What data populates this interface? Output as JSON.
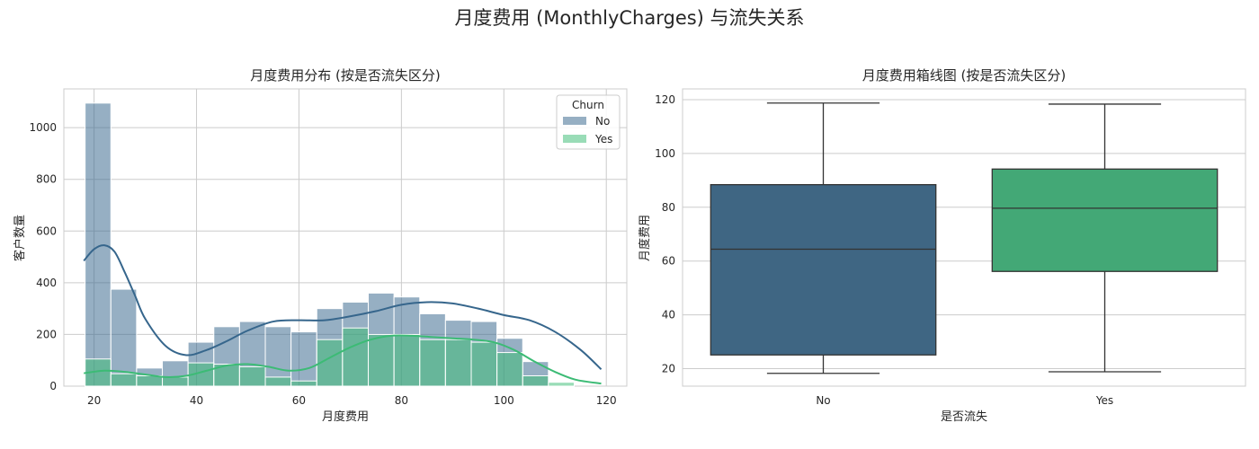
{
  "figure": {
    "title": "月度费用 (MonthlyCharges) 与流失关系"
  },
  "chart_data": [
    {
      "type": "histogram",
      "title": "月度费用分布 (按是否流失区分)",
      "xlabel": "月度费用",
      "ylabel": "客户数量",
      "xlim": [
        14.1,
        124
      ],
      "ylim": [
        0,
        1150
      ],
      "xticks": [
        20,
        40,
        60,
        80,
        100,
        120
      ],
      "yticks": [
        0,
        200,
        400,
        600,
        800,
        1000
      ],
      "grid": true,
      "legend": {
        "title": "Churn",
        "placement": "top-right"
      },
      "bin_edges": [
        18.25,
        23.28,
        28.3,
        33.33,
        38.35,
        43.38,
        48.4,
        53.43,
        58.45,
        63.48,
        68.5,
        73.53,
        78.55,
        83.58,
        88.6,
        93.63,
        98.65,
        103.68,
        108.7,
        113.73,
        118.75
      ],
      "series": [
        {
          "name": "No",
          "color": "#36668c",
          "counts": [
            1095,
            375,
            70,
            98,
            170,
            230,
            250,
            230,
            210,
            300,
            325,
            360,
            345,
            280,
            255,
            250,
            185,
            95,
            0,
            0
          ],
          "kde_x": [
            18,
            20,
            22,
            24,
            26,
            28,
            30,
            34,
            38,
            42,
            46,
            50,
            55,
            60,
            65,
            70,
            75,
            80,
            85,
            90,
            95,
            100,
            105,
            110,
            115,
            119
          ],
          "kde_y": [
            485,
            530,
            545,
            520,
            440,
            350,
            260,
            155,
            120,
            140,
            175,
            215,
            250,
            255,
            255,
            270,
            290,
            315,
            325,
            320,
            300,
            275,
            255,
            210,
            140,
            65
          ]
        },
        {
          "name": "Yes",
          "color": "#3cbb75",
          "counts": [
            105,
            48,
            40,
            35,
            90,
            85,
            75,
            35,
            20,
            180,
            225,
            200,
            200,
            180,
            180,
            170,
            130,
            40,
            15,
            0
          ],
          "kde_x": [
            18,
            22,
            26,
            30,
            34,
            38,
            42,
            46,
            50,
            54,
            58,
            62,
            66,
            70,
            74,
            78,
            82,
            86,
            90,
            94,
            98,
            102,
            106,
            110,
            114,
            119
          ],
          "kde_y": [
            50,
            60,
            55,
            45,
            35,
            40,
            60,
            80,
            85,
            75,
            60,
            70,
            110,
            150,
            180,
            195,
            195,
            190,
            185,
            180,
            170,
            140,
            95,
            55,
            25,
            10
          ]
        }
      ]
    },
    {
      "type": "box",
      "title": "月度费用箱线图 (按是否流失区分)",
      "xlabel": "是否流失",
      "ylabel": "月度费用",
      "ylim": [
        13.5,
        124
      ],
      "yticks": [
        20,
        40,
        60,
        80,
        100,
        120
      ],
      "grid": true,
      "categories": [
        "No",
        "Yes"
      ],
      "boxes": [
        {
          "name": "No",
          "color": "#3f6683",
          "min": 18.25,
          "q1": 25.1,
          "median": 64.4,
          "q3": 88.4,
          "max": 118.75
        },
        {
          "name": "Yes",
          "color": "#43a876",
          "min": 18.85,
          "q1": 56.15,
          "median": 79.65,
          "q3": 94.2,
          "max": 118.35
        }
      ]
    }
  ]
}
